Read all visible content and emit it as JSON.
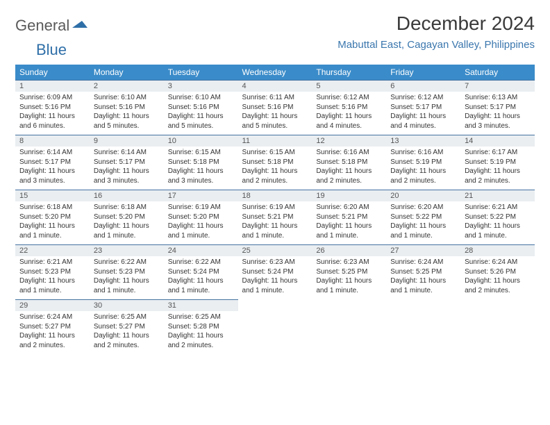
{
  "brand": {
    "part1": "General",
    "part2": "Blue"
  },
  "title": "December 2024",
  "location": "Mabuttal East, Cagayan Valley, Philippines",
  "colors": {
    "header_bg": "#3a8bc9",
    "header_text": "#ffffff",
    "daynum_bg": "#eaeef1",
    "daynum_border": "#4472a0",
    "location_color": "#3a76ad",
    "logo_blue": "#2f6fa8",
    "text": "#333333"
  },
  "weekdays": [
    "Sunday",
    "Monday",
    "Tuesday",
    "Wednesday",
    "Thursday",
    "Friday",
    "Saturday"
  ],
  "weeks": [
    [
      {
        "n": "1",
        "sr": "Sunrise: 6:09 AM",
        "ss": "Sunset: 5:16 PM",
        "dl": "Daylight: 11 hours and 6 minutes."
      },
      {
        "n": "2",
        "sr": "Sunrise: 6:10 AM",
        "ss": "Sunset: 5:16 PM",
        "dl": "Daylight: 11 hours and 5 minutes."
      },
      {
        "n": "3",
        "sr": "Sunrise: 6:10 AM",
        "ss": "Sunset: 5:16 PM",
        "dl": "Daylight: 11 hours and 5 minutes."
      },
      {
        "n": "4",
        "sr": "Sunrise: 6:11 AM",
        "ss": "Sunset: 5:16 PM",
        "dl": "Daylight: 11 hours and 5 minutes."
      },
      {
        "n": "5",
        "sr": "Sunrise: 6:12 AM",
        "ss": "Sunset: 5:16 PM",
        "dl": "Daylight: 11 hours and 4 minutes."
      },
      {
        "n": "6",
        "sr": "Sunrise: 6:12 AM",
        "ss": "Sunset: 5:17 PM",
        "dl": "Daylight: 11 hours and 4 minutes."
      },
      {
        "n": "7",
        "sr": "Sunrise: 6:13 AM",
        "ss": "Sunset: 5:17 PM",
        "dl": "Daylight: 11 hours and 3 minutes."
      }
    ],
    [
      {
        "n": "8",
        "sr": "Sunrise: 6:14 AM",
        "ss": "Sunset: 5:17 PM",
        "dl": "Daylight: 11 hours and 3 minutes."
      },
      {
        "n": "9",
        "sr": "Sunrise: 6:14 AM",
        "ss": "Sunset: 5:17 PM",
        "dl": "Daylight: 11 hours and 3 minutes."
      },
      {
        "n": "10",
        "sr": "Sunrise: 6:15 AM",
        "ss": "Sunset: 5:18 PM",
        "dl": "Daylight: 11 hours and 3 minutes."
      },
      {
        "n": "11",
        "sr": "Sunrise: 6:15 AM",
        "ss": "Sunset: 5:18 PM",
        "dl": "Daylight: 11 hours and 2 minutes."
      },
      {
        "n": "12",
        "sr": "Sunrise: 6:16 AM",
        "ss": "Sunset: 5:18 PM",
        "dl": "Daylight: 11 hours and 2 minutes."
      },
      {
        "n": "13",
        "sr": "Sunrise: 6:16 AM",
        "ss": "Sunset: 5:19 PM",
        "dl": "Daylight: 11 hours and 2 minutes."
      },
      {
        "n": "14",
        "sr": "Sunrise: 6:17 AM",
        "ss": "Sunset: 5:19 PM",
        "dl": "Daylight: 11 hours and 2 minutes."
      }
    ],
    [
      {
        "n": "15",
        "sr": "Sunrise: 6:18 AM",
        "ss": "Sunset: 5:20 PM",
        "dl": "Daylight: 11 hours and 1 minute."
      },
      {
        "n": "16",
        "sr": "Sunrise: 6:18 AM",
        "ss": "Sunset: 5:20 PM",
        "dl": "Daylight: 11 hours and 1 minute."
      },
      {
        "n": "17",
        "sr": "Sunrise: 6:19 AM",
        "ss": "Sunset: 5:20 PM",
        "dl": "Daylight: 11 hours and 1 minute."
      },
      {
        "n": "18",
        "sr": "Sunrise: 6:19 AM",
        "ss": "Sunset: 5:21 PM",
        "dl": "Daylight: 11 hours and 1 minute."
      },
      {
        "n": "19",
        "sr": "Sunrise: 6:20 AM",
        "ss": "Sunset: 5:21 PM",
        "dl": "Daylight: 11 hours and 1 minute."
      },
      {
        "n": "20",
        "sr": "Sunrise: 6:20 AM",
        "ss": "Sunset: 5:22 PM",
        "dl": "Daylight: 11 hours and 1 minute."
      },
      {
        "n": "21",
        "sr": "Sunrise: 6:21 AM",
        "ss": "Sunset: 5:22 PM",
        "dl": "Daylight: 11 hours and 1 minute."
      }
    ],
    [
      {
        "n": "22",
        "sr": "Sunrise: 6:21 AM",
        "ss": "Sunset: 5:23 PM",
        "dl": "Daylight: 11 hours and 1 minute."
      },
      {
        "n": "23",
        "sr": "Sunrise: 6:22 AM",
        "ss": "Sunset: 5:23 PM",
        "dl": "Daylight: 11 hours and 1 minute."
      },
      {
        "n": "24",
        "sr": "Sunrise: 6:22 AM",
        "ss": "Sunset: 5:24 PM",
        "dl": "Daylight: 11 hours and 1 minute."
      },
      {
        "n": "25",
        "sr": "Sunrise: 6:23 AM",
        "ss": "Sunset: 5:24 PM",
        "dl": "Daylight: 11 hours and 1 minute."
      },
      {
        "n": "26",
        "sr": "Sunrise: 6:23 AM",
        "ss": "Sunset: 5:25 PM",
        "dl": "Daylight: 11 hours and 1 minute."
      },
      {
        "n": "27",
        "sr": "Sunrise: 6:24 AM",
        "ss": "Sunset: 5:25 PM",
        "dl": "Daylight: 11 hours and 1 minute."
      },
      {
        "n": "28",
        "sr": "Sunrise: 6:24 AM",
        "ss": "Sunset: 5:26 PM",
        "dl": "Daylight: 11 hours and 2 minutes."
      }
    ],
    [
      {
        "n": "29",
        "sr": "Sunrise: 6:24 AM",
        "ss": "Sunset: 5:27 PM",
        "dl": "Daylight: 11 hours and 2 minutes."
      },
      {
        "n": "30",
        "sr": "Sunrise: 6:25 AM",
        "ss": "Sunset: 5:27 PM",
        "dl": "Daylight: 11 hours and 2 minutes."
      },
      {
        "n": "31",
        "sr": "Sunrise: 6:25 AM",
        "ss": "Sunset: 5:28 PM",
        "dl": "Daylight: 11 hours and 2 minutes."
      },
      null,
      null,
      null,
      null
    ]
  ]
}
